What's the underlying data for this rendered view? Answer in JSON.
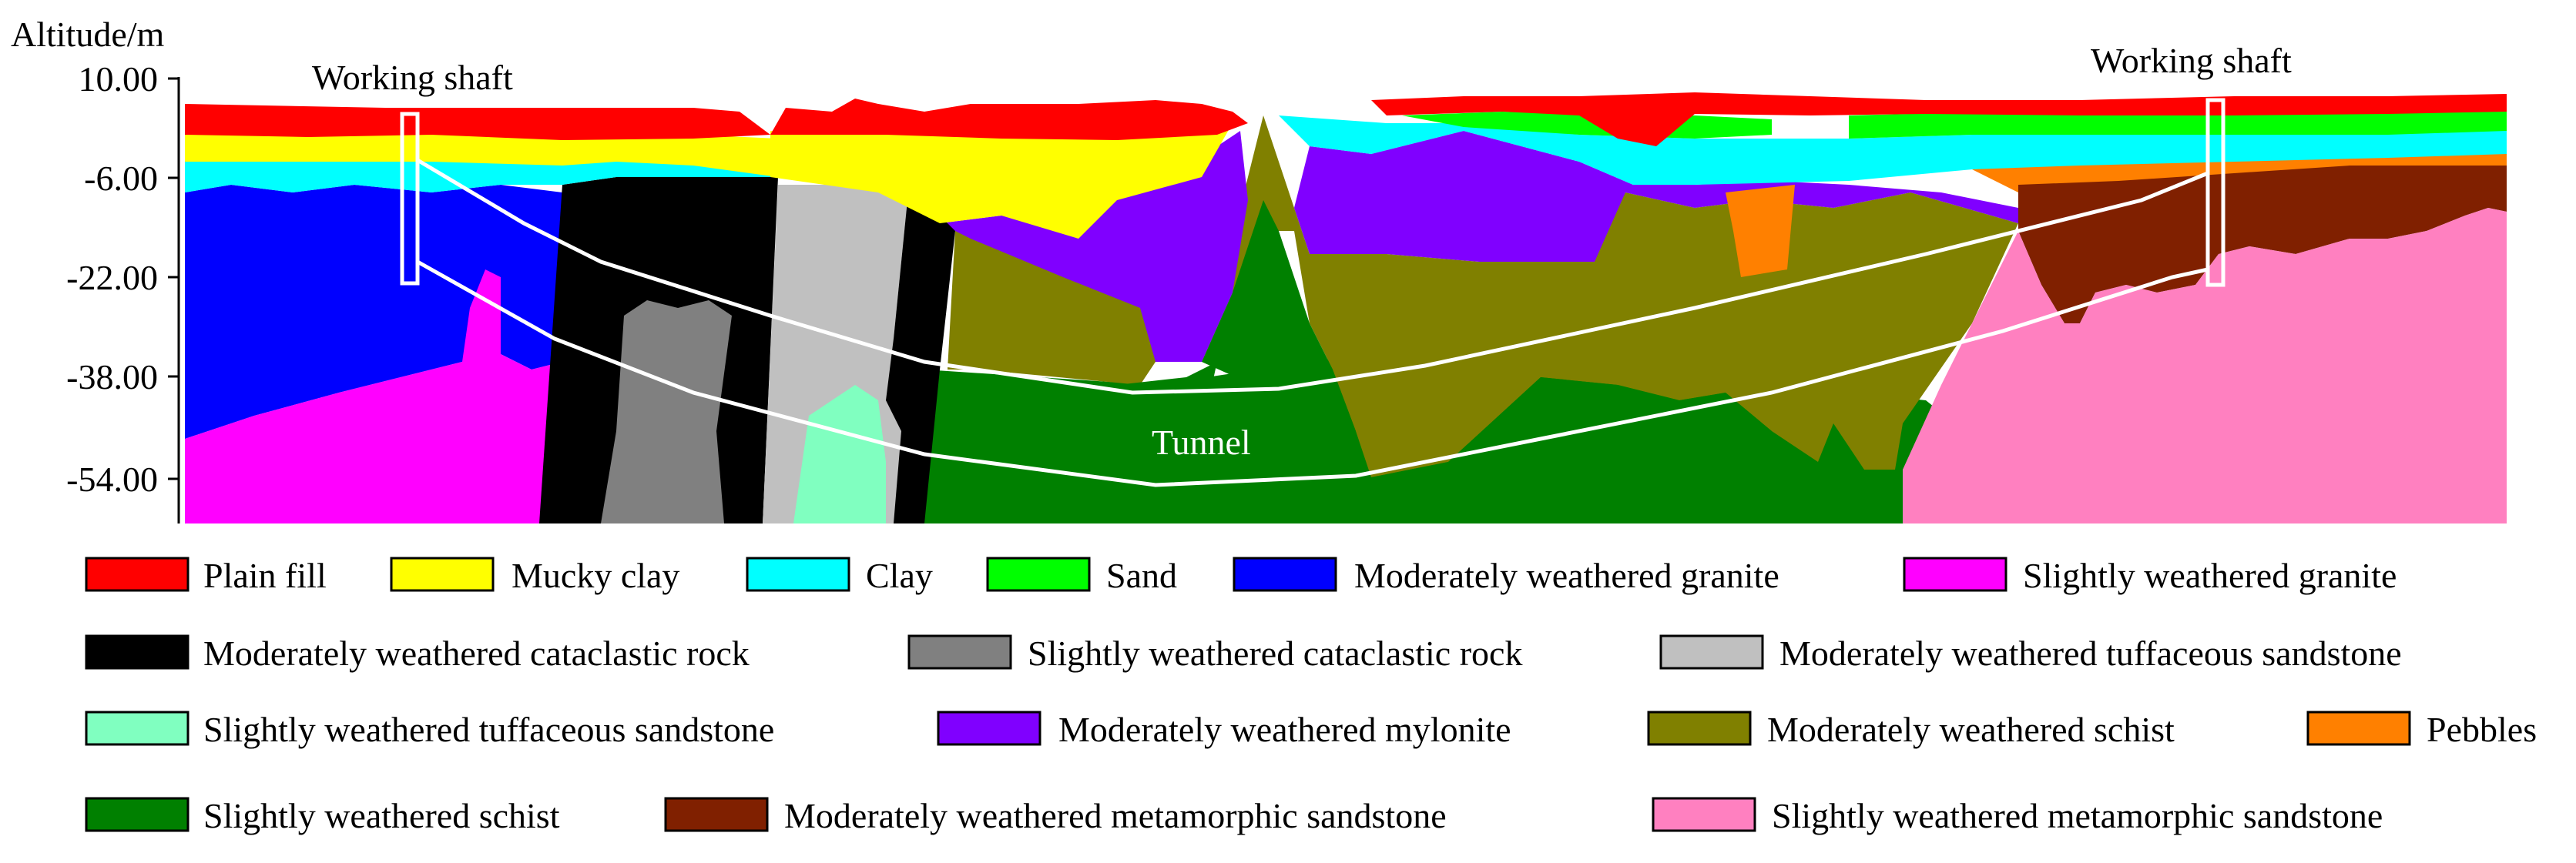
{
  "axis": {
    "title": "Altitude/m",
    "ticks": [
      "10.00",
      "-6.00",
      "-22.00",
      "-38.00",
      "-54.00"
    ]
  },
  "annotations": {
    "shaft_left": "Working shaft",
    "shaft_right": "Working shaft",
    "tunnel": "Tunnel"
  },
  "legend": [
    {
      "label": "Plain fill",
      "color": "#ff0000"
    },
    {
      "label": "Mucky clay",
      "color": "#ffff00"
    },
    {
      "label": "Clay",
      "color": "#00ffff"
    },
    {
      "label": "Sand",
      "color": "#00ff00"
    },
    {
      "label": "Moderately weathered granite",
      "color": "#0000ff"
    },
    {
      "label": "Slightly weathered granite",
      "color": "#ff00ff"
    },
    {
      "label": "Moderately weathered cataclastic rock",
      "color": "#000000"
    },
    {
      "label": "Slightly weathered cataclastic rock",
      "color": "#808080"
    },
    {
      "label": "Moderately weathered tuffaceous sandstone",
      "color": "#c0c0c0"
    },
    {
      "label": "Slightly weathered tuffaceous sandstone",
      "color": "#80ffc0"
    },
    {
      "label": "Moderately weathered mylonite",
      "color": "#8000ff"
    },
    {
      "label": "Moderately weathered schist",
      "color": "#808000"
    },
    {
      "label": "Pebbles",
      "color": "#ff8000"
    },
    {
      "label": "Slightly weathered schist",
      "color": "#008000"
    },
    {
      "label": "Moderately weathered metamorphic sandstone",
      "color": "#802000"
    },
    {
      "label": "Slightly weathered metamorphic sandstone",
      "color": "#ff80c0"
    }
  ]
}
